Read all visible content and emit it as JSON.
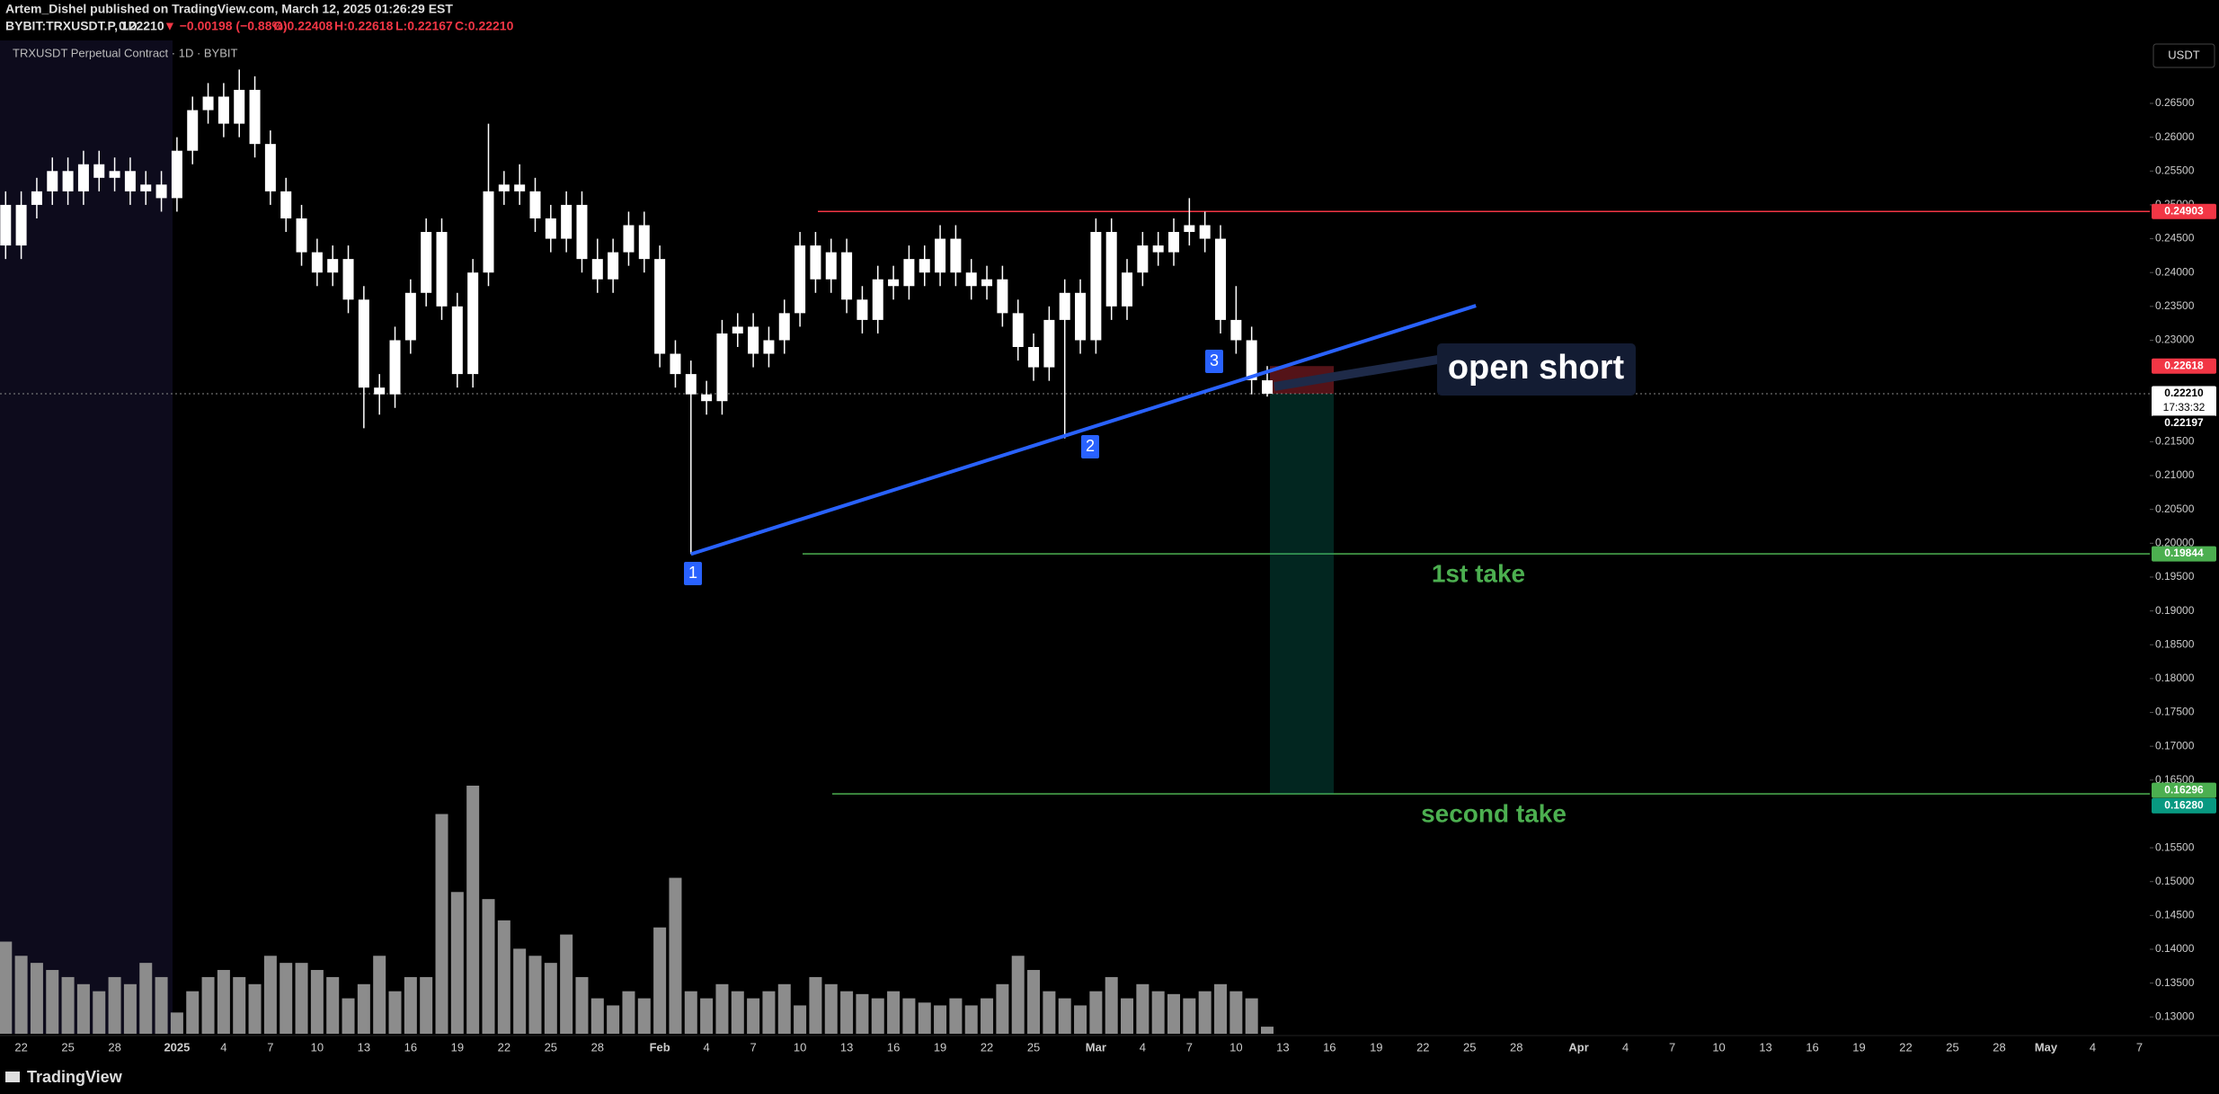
{
  "header": {
    "line1": "Artem_Dishel published on TradingView.com, March 12, 2025 01:26:29 EST",
    "symbol": "BYBIT:TRXUSDT.P, 1D",
    "last": "0.22210",
    "change": "▼ −0.00198 (−0.88%)",
    "ohlc": [
      "O:0.22408",
      "H:0.22618",
      "L:0.22167",
      "C:0.22210"
    ]
  },
  "chart_data": {
    "type": "candlestick",
    "title": "TRXUSDT Perpetual Contract · 1D · BYBIT",
    "currency": "USDT",
    "up_color": "#ffffff",
    "down_color": "#ffffff",
    "volume_color": "#8c8c8c",
    "yticks": [
      {
        "value": 0.265,
        "label": "0.26500"
      },
      {
        "value": 0.26,
        "label": "0.26000"
      },
      {
        "value": 0.255,
        "label": "0.25500"
      },
      {
        "value": 0.25,
        "label": "0.25000"
      },
      {
        "value": 0.245,
        "label": "0.24500"
      },
      {
        "value": 0.24,
        "label": "0.24000"
      },
      {
        "value": 0.235,
        "label": "0.23500"
      },
      {
        "value": 0.23,
        "label": "0.23000"
      },
      {
        "value": 0.215,
        "label": "0.21500"
      },
      {
        "value": 0.21,
        "label": "0.21000"
      },
      {
        "value": 0.205,
        "label": "0.20500"
      },
      {
        "value": 0.2,
        "label": "0.20000"
      },
      {
        "value": 0.195,
        "label": "0.19500"
      },
      {
        "value": 0.19,
        "label": "0.19000"
      },
      {
        "value": 0.185,
        "label": "0.18500"
      },
      {
        "value": 0.18,
        "label": "0.18000"
      },
      {
        "value": 0.175,
        "label": "0.17500"
      },
      {
        "value": 0.17,
        "label": "0.17000"
      },
      {
        "value": 0.165,
        "label": "0.16500"
      },
      {
        "value": 0.155,
        "label": "0.15500"
      },
      {
        "value": 0.15,
        "label": "0.15000"
      },
      {
        "value": 0.145,
        "label": "0.14500"
      },
      {
        "value": 0.14,
        "label": "0.14000"
      },
      {
        "value": 0.135,
        "label": "0.13500"
      },
      {
        "value": 0.13,
        "label": "0.13000"
      }
    ],
    "xticks": [
      "22",
      "25",
      "28",
      "2025",
      "4",
      "7",
      "10",
      "13",
      "16",
      "19",
      "22",
      "25",
      "28",
      "Feb",
      "4",
      "7",
      "10",
      "13",
      "16",
      "19",
      "22",
      "25",
      "Mar",
      "4",
      "7",
      "10",
      "13",
      "16",
      "19",
      "22",
      "25",
      "28",
      "Apr",
      "4",
      "7",
      "10",
      "13",
      "16",
      "19",
      "22",
      "25",
      "28",
      "May",
      "4",
      "7"
    ],
    "candles": [
      [
        0.25,
        0.252,
        0.242,
        0.244
      ],
      [
        0.244,
        0.252,
        0.242,
        0.25
      ],
      [
        0.25,
        0.254,
        0.248,
        0.252
      ],
      [
        0.252,
        0.257,
        0.25,
        0.255
      ],
      [
        0.255,
        0.257,
        0.25,
        0.252
      ],
      [
        0.252,
        0.258,
        0.25,
        0.256
      ],
      [
        0.256,
        0.258,
        0.252,
        0.254
      ],
      [
        0.254,
        0.257,
        0.252,
        0.255
      ],
      [
        0.255,
        0.257,
        0.25,
        0.252
      ],
      [
        0.252,
        0.255,
        0.25,
        0.253
      ],
      [
        0.253,
        0.255,
        0.249,
        0.251
      ],
      [
        0.251,
        0.26,
        0.249,
        0.258
      ],
      [
        0.258,
        0.266,
        0.256,
        0.264
      ],
      [
        0.264,
        0.268,
        0.262,
        0.266
      ],
      [
        0.266,
        0.268,
        0.26,
        0.262
      ],
      [
        0.262,
        0.27,
        0.26,
        0.267
      ],
      [
        0.267,
        0.269,
        0.257,
        0.259
      ],
      [
        0.259,
        0.261,
        0.25,
        0.252
      ],
      [
        0.252,
        0.254,
        0.246,
        0.248
      ],
      [
        0.248,
        0.25,
        0.241,
        0.243
      ],
      [
        0.243,
        0.245,
        0.238,
        0.24
      ],
      [
        0.24,
        0.244,
        0.238,
        0.242
      ],
      [
        0.242,
        0.244,
        0.234,
        0.236
      ],
      [
        0.236,
        0.238,
        0.217,
        0.223
      ],
      [
        0.223,
        0.225,
        0.219,
        0.222
      ],
      [
        0.222,
        0.232,
        0.22,
        0.23
      ],
      [
        0.23,
        0.239,
        0.228,
        0.237
      ],
      [
        0.237,
        0.248,
        0.235,
        0.246
      ],
      [
        0.246,
        0.248,
        0.233,
        0.235
      ],
      [
        0.235,
        0.237,
        0.223,
        0.225
      ],
      [
        0.225,
        0.242,
        0.223,
        0.24
      ],
      [
        0.24,
        0.262,
        0.238,
        0.252
      ],
      [
        0.252,
        0.255,
        0.25,
        0.253
      ],
      [
        0.253,
        0.256,
        0.25,
        0.252
      ],
      [
        0.252,
        0.254,
        0.246,
        0.248
      ],
      [
        0.248,
        0.25,
        0.243,
        0.245
      ],
      [
        0.245,
        0.252,
        0.243,
        0.25
      ],
      [
        0.25,
        0.252,
        0.24,
        0.242
      ],
      [
        0.242,
        0.245,
        0.237,
        0.239
      ],
      [
        0.239,
        0.245,
        0.237,
        0.243
      ],
      [
        0.243,
        0.249,
        0.241,
        0.247
      ],
      [
        0.247,
        0.249,
        0.24,
        0.242
      ],
      [
        0.242,
        0.244,
        0.226,
        0.228
      ],
      [
        0.228,
        0.23,
        0.223,
        0.225
      ],
      [
        0.225,
        0.227,
        0.1984,
        0.222
      ],
      [
        0.222,
        0.224,
        0.219,
        0.221
      ],
      [
        0.221,
        0.233,
        0.219,
        0.231
      ],
      [
        0.231,
        0.234,
        0.229,
        0.232
      ],
      [
        0.232,
        0.234,
        0.226,
        0.228
      ],
      [
        0.228,
        0.232,
        0.226,
        0.23
      ],
      [
        0.23,
        0.236,
        0.228,
        0.234
      ],
      [
        0.234,
        0.246,
        0.232,
        0.244
      ],
      [
        0.244,
        0.246,
        0.237,
        0.239
      ],
      [
        0.239,
        0.245,
        0.237,
        0.243
      ],
      [
        0.243,
        0.245,
        0.234,
        0.236
      ],
      [
        0.236,
        0.238,
        0.231,
        0.233
      ],
      [
        0.233,
        0.241,
        0.231,
        0.239
      ],
      [
        0.239,
        0.241,
        0.236,
        0.238
      ],
      [
        0.238,
        0.244,
        0.236,
        0.242
      ],
      [
        0.242,
        0.244,
        0.238,
        0.24
      ],
      [
        0.24,
        0.247,
        0.238,
        0.245
      ],
      [
        0.245,
        0.247,
        0.238,
        0.24
      ],
      [
        0.24,
        0.242,
        0.236,
        0.238
      ],
      [
        0.238,
        0.241,
        0.236,
        0.239
      ],
      [
        0.239,
        0.241,
        0.232,
        0.234
      ],
      [
        0.234,
        0.236,
        0.227,
        0.229
      ],
      [
        0.229,
        0.231,
        0.224,
        0.226
      ],
      [
        0.226,
        0.235,
        0.224,
        0.233
      ],
      [
        0.233,
        0.239,
        0.2155,
        0.237
      ],
      [
        0.237,
        0.239,
        0.228,
        0.23
      ],
      [
        0.23,
        0.248,
        0.228,
        0.246
      ],
      [
        0.246,
        0.248,
        0.233,
        0.235
      ],
      [
        0.235,
        0.242,
        0.233,
        0.24
      ],
      [
        0.24,
        0.246,
        0.238,
        0.244
      ],
      [
        0.244,
        0.246,
        0.241,
        0.243
      ],
      [
        0.243,
        0.248,
        0.241,
        0.246
      ],
      [
        0.246,
        0.251,
        0.244,
        0.247
      ],
      [
        0.247,
        0.249,
        0.243,
        0.245
      ],
      [
        0.245,
        0.247,
        0.231,
        0.233
      ],
      [
        0.233,
        0.238,
        0.228,
        0.23
      ],
      [
        0.23,
        0.232,
        0.222,
        0.2241
      ],
      [
        0.22408,
        0.22618,
        0.22167,
        0.2221
      ]
    ],
    "volume": [
      65,
      55,
      50,
      45,
      40,
      35,
      30,
      40,
      35,
      50,
      40,
      15,
      30,
      40,
      45,
      40,
      35,
      55,
      50,
      50,
      45,
      40,
      25,
      35,
      55,
      30,
      40,
      40,
      155,
      100,
      175,
      95,
      80,
      60,
      55,
      50,
      70,
      40,
      25,
      20,
      30,
      25,
      75,
      110,
      30,
      25,
      35,
      30,
      25,
      30,
      35,
      20,
      40,
      35,
      30,
      28,
      25,
      30,
      25,
      22,
      20,
      25,
      20,
      25,
      35,
      55,
      45,
      30,
      25,
      20,
      30,
      40,
      25,
      35,
      30,
      28,
      25,
      30,
      35,
      30,
      25,
      5
    ],
    "price_tags": [
      {
        "value": 0.24903,
        "label": "0.24903",
        "color": "#f23645"
      },
      {
        "value": 0.22618,
        "label": "0.22618",
        "color": "#f23645"
      },
      {
        "value": 0.2221,
        "label": "0.22210",
        "sub": "17:33:32",
        "color": "#ffffff"
      },
      {
        "value": 0.22197,
        "label": "0.22197",
        "color": "#000000"
      },
      {
        "value": 0.19844,
        "label": "0.19844",
        "color": "#4caf50"
      },
      {
        "value": 0.16296,
        "label": "0.16296",
        "color": "#4caf50"
      },
      {
        "value": 0.1628,
        "label": "0.16280",
        "color": "#089981"
      }
    ],
    "trendline": {
      "from": 0.1984,
      "to": 0.2351,
      "color": "#2962ff"
    },
    "points": [
      "1",
      "2",
      "3"
    ],
    "annotations": {
      "entry": "open short",
      "take1": "1st take",
      "take2": "second take"
    }
  },
  "footer": "TradingView"
}
